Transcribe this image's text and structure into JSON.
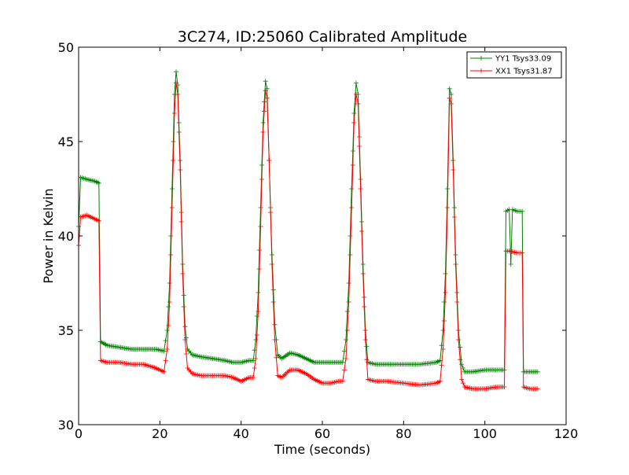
{
  "chart_data": {
    "type": "line",
    "title": "3C274, ID:25060 Calibrated Amplitude",
    "xlabel": "Time (seconds)",
    "ylabel": "Power in Kelvin",
    "xlim": [
      0,
      120
    ],
    "ylim": [
      30,
      50
    ],
    "xticks": [
      0,
      20,
      40,
      60,
      80,
      100,
      120
    ],
    "yticks": [
      30,
      35,
      40,
      45,
      50
    ],
    "grid": false,
    "legend_position": "top-right",
    "series": [
      {
        "name": "YY1 Tsys33.09",
        "color": "#008000",
        "marker": "+",
        "points": [
          [
            0,
            40.5
          ],
          [
            0.5,
            43.1
          ],
          [
            2,
            43.0
          ],
          [
            4,
            42.9
          ],
          [
            5,
            42.8
          ],
          [
            5.4,
            34.4
          ],
          [
            7,
            34.2
          ],
          [
            10,
            34.1
          ],
          [
            13,
            34.0
          ],
          [
            16,
            34.0
          ],
          [
            19,
            34.0
          ],
          [
            21,
            33.9
          ],
          [
            21.8,
            35.0
          ],
          [
            22.4,
            37.5
          ],
          [
            23.0,
            42.5
          ],
          [
            23.6,
            47.5
          ],
          [
            24.0,
            48.7
          ],
          [
            24.4,
            48.0
          ],
          [
            25.0,
            44.0
          ],
          [
            25.6,
            38.5
          ],
          [
            26.2,
            35.2
          ],
          [
            26.8,
            34.0
          ],
          [
            28,
            33.7
          ],
          [
            30,
            33.6
          ],
          [
            33,
            33.5
          ],
          [
            36,
            33.4
          ],
          [
            38,
            33.3
          ],
          [
            40,
            33.3
          ],
          [
            42,
            33.4
          ],
          [
            43,
            33.4
          ],
          [
            43.6,
            34.5
          ],
          [
            44.2,
            37.0
          ],
          [
            44.8,
            41.5
          ],
          [
            45.4,
            46.0
          ],
          [
            46.0,
            48.2
          ],
          [
            46.4,
            47.8
          ],
          [
            46.9,
            44.0
          ],
          [
            47.6,
            39.0
          ],
          [
            48.3,
            35.3
          ],
          [
            49,
            33.7
          ],
          [
            50,
            33.5
          ],
          [
            52,
            33.8
          ],
          [
            54,
            33.7
          ],
          [
            56,
            33.5
          ],
          [
            58,
            33.3
          ],
          [
            60,
            33.3
          ],
          [
            62,
            33.3
          ],
          [
            64,
            33.3
          ],
          [
            65,
            33.3
          ],
          [
            65.8,
            34.5
          ],
          [
            66.5,
            37.5
          ],
          [
            67.2,
            42.5
          ],
          [
            67.8,
            46.5
          ],
          [
            68.3,
            48.1
          ],
          [
            68.8,
            47.5
          ],
          [
            69.4,
            43.0
          ],
          [
            70.0,
            38.5
          ],
          [
            70.6,
            35.0
          ],
          [
            71.2,
            33.3
          ],
          [
            73,
            33.2
          ],
          [
            76,
            33.2
          ],
          [
            80,
            33.2
          ],
          [
            84,
            33.2
          ],
          [
            88,
            33.3
          ],
          [
            89,
            33.4
          ],
          [
            89.7,
            35.0
          ],
          [
            90.3,
            38.0
          ],
          [
            90.8,
            42.5
          ],
          [
            91.3,
            47.8
          ],
          [
            91.7,
            47.5
          ],
          [
            92.2,
            44.0
          ],
          [
            92.8,
            39.0
          ],
          [
            93.5,
            35.0
          ],
          [
            94.3,
            33.2
          ],
          [
            95,
            32.8
          ],
          [
            97,
            32.8
          ],
          [
            100,
            32.9
          ],
          [
            103,
            32.9
          ],
          [
            104.8,
            32.9
          ],
          [
            105.2,
            41.3
          ],
          [
            106,
            41.4
          ],
          [
            106.4,
            38.5
          ],
          [
            106.8,
            41.4
          ],
          [
            108,
            41.3
          ],
          [
            109.2,
            41.3
          ],
          [
            109.5,
            32.8
          ],
          [
            111,
            32.8
          ],
          [
            113,
            32.8
          ]
        ]
      },
      {
        "name": "XX1 Tsys31.87",
        "color": "#ff0000",
        "marker": "+",
        "points": [
          [
            0,
            39.5
          ],
          [
            0.5,
            41.0
          ],
          [
            2,
            41.1
          ],
          [
            4,
            40.9
          ],
          [
            5,
            40.8
          ],
          [
            5.4,
            33.4
          ],
          [
            7,
            33.3
          ],
          [
            10,
            33.3
          ],
          [
            13,
            33.2
          ],
          [
            16,
            33.2
          ],
          [
            19,
            33.0
          ],
          [
            21,
            32.8
          ],
          [
            21.8,
            34.0
          ],
          [
            22.4,
            36.5
          ],
          [
            23.0,
            41.5
          ],
          [
            23.6,
            46.5
          ],
          [
            24.0,
            48.1
          ],
          [
            24.4,
            47.5
          ],
          [
            25.0,
            43.5
          ],
          [
            25.6,
            38.0
          ],
          [
            26.2,
            34.5
          ],
          [
            26.8,
            33.0
          ],
          [
            28,
            32.7
          ],
          [
            30,
            32.6
          ],
          [
            33,
            32.6
          ],
          [
            36,
            32.6
          ],
          [
            38,
            32.5
          ],
          [
            40,
            32.3
          ],
          [
            42,
            32.5
          ],
          [
            43,
            32.5
          ],
          [
            43.6,
            33.5
          ],
          [
            44.2,
            36.0
          ],
          [
            44.8,
            40.5
          ],
          [
            45.4,
            45.5
          ],
          [
            46.0,
            47.7
          ],
          [
            46.4,
            47.3
          ],
          [
            46.9,
            44.0
          ],
          [
            47.6,
            38.5
          ],
          [
            48.3,
            34.5
          ],
          [
            49,
            32.6
          ],
          [
            50,
            32.5
          ],
          [
            52,
            32.9
          ],
          [
            54,
            32.9
          ],
          [
            56,
            32.7
          ],
          [
            58,
            32.4
          ],
          [
            60,
            32.2
          ],
          [
            62,
            32.2
          ],
          [
            64,
            32.3
          ],
          [
            65,
            32.3
          ],
          [
            65.8,
            33.5
          ],
          [
            66.5,
            36.5
          ],
          [
            67.2,
            41.5
          ],
          [
            67.8,
            46.0
          ],
          [
            68.3,
            47.5
          ],
          [
            68.8,
            47.0
          ],
          [
            69.4,
            42.5
          ],
          [
            70.0,
            38.0
          ],
          [
            70.6,
            34.5
          ],
          [
            71.2,
            32.4
          ],
          [
            73,
            32.3
          ],
          [
            76,
            32.3
          ],
          [
            80,
            32.2
          ],
          [
            84,
            32.1
          ],
          [
            88,
            32.2
          ],
          [
            89,
            32.3
          ],
          [
            89.7,
            34.0
          ],
          [
            90.3,
            37.0
          ],
          [
            90.8,
            41.5
          ],
          [
            91.3,
            47.3
          ],
          [
            91.7,
            47.0
          ],
          [
            92.2,
            43.5
          ],
          [
            92.8,
            38.5
          ],
          [
            93.5,
            34.5
          ],
          [
            94.3,
            32.4
          ],
          [
            95,
            32.0
          ],
          [
            97,
            31.9
          ],
          [
            100,
            31.9
          ],
          [
            103,
            32.0
          ],
          [
            104.8,
            32.0
          ],
          [
            105.2,
            39.2
          ],
          [
            106,
            39.2
          ],
          [
            108,
            39.1
          ],
          [
            109.2,
            39.1
          ],
          [
            109.5,
            32.0
          ],
          [
            111,
            31.9
          ],
          [
            113,
            31.9
          ]
        ]
      }
    ]
  }
}
